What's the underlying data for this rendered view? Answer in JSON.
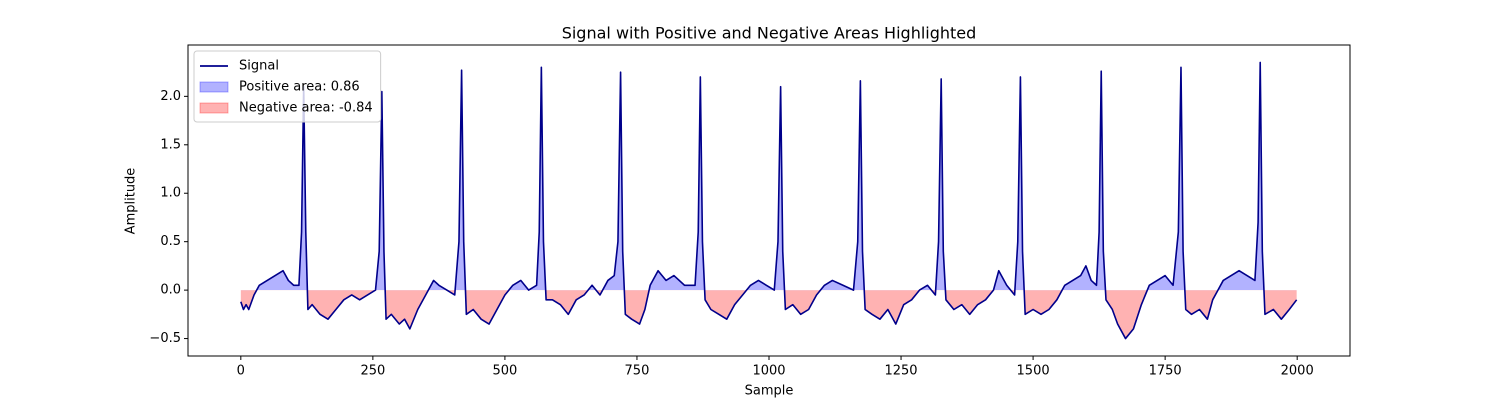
{
  "chart_data": {
    "type": "line",
    "title": "Signal with Positive and Negative Areas Highlighted",
    "x_label": "Sample",
    "y_label": "Amplitude",
    "xlim": [
      -100,
      2100
    ],
    "ylim": [
      -0.68,
      2.53
    ],
    "xticks": [
      0,
      250,
      500,
      750,
      1000,
      1250,
      1500,
      1750,
      2000
    ],
    "yticks": [
      {
        "value": -0.5,
        "label": "−0.5"
      },
      {
        "value": 0,
        "label": "0.0"
      },
      0.5,
      {
        "value": 1,
        "label": "1.0"
      },
      1.5,
      {
        "value": 2,
        "label": "2.0"
      }
    ],
    "legend": "upper left",
    "fills": [
      {
        "name": "Positive area: 0.86",
        "color": "#0000ff",
        "side": "positive"
      },
      {
        "name": "Negative area: -0.84",
        "color": "#ff0000",
        "side": "negative"
      }
    ],
    "series": [
      {
        "name": "Signal",
        "color": "#00008b",
        "x": [
          0,
          5,
          10,
          15,
          25,
          35,
          50,
          65,
          80,
          90,
          100,
          110,
          115,
          119,
          123,
          127,
          135,
          150,
          165,
          180,
          195,
          210,
          225,
          240,
          255,
          262,
          267,
          271,
          275,
          285,
          300,
          310,
          320,
          335,
          350,
          365,
          375,
          390,
          405,
          413,
          418,
          422,
          427,
          440,
          455,
          470,
          485,
          500,
          515,
          530,
          545,
          560,
          565,
          569,
          573,
          578,
          590,
          605,
          620,
          635,
          650,
          665,
          680,
          695,
          707,
          714,
          719,
          723,
          728,
          740,
          755,
          765,
          775,
          790,
          805,
          820,
          840,
          860,
          866,
          870,
          874,
          879,
          890,
          905,
          920,
          935,
          950,
          965,
          980,
          995,
          1010,
          1017,
          1022,
          1026,
          1031,
          1045,
          1060,
          1075,
          1090,
          1105,
          1120,
          1140,
          1160,
          1168,
          1173,
          1177,
          1182,
          1195,
          1210,
          1225,
          1240,
          1255,
          1270,
          1285,
          1300,
          1315,
          1321,
          1326,
          1330,
          1335,
          1350,
          1365,
          1380,
          1395,
          1410,
          1425,
          1435,
          1450,
          1465,
          1471,
          1476,
          1480,
          1485,
          1500,
          1515,
          1530,
          1545,
          1560,
          1575,
          1590,
          1600,
          1610,
          1620,
          1625,
          1629,
          1633,
          1638,
          1650,
          1660,
          1675,
          1690,
          1705,
          1720,
          1735,
          1750,
          1765,
          1775,
          1780,
          1784,
          1789,
          1800,
          1815,
          1830,
          1840,
          1850,
          1860,
          1875,
          1890,
          1905,
          1920,
          1926,
          1930,
          1934,
          1939,
          1955,
          1970,
          1985,
          1999
        ],
        "values": [
          -0.12,
          -0.2,
          -0.15,
          -0.2,
          -0.05,
          0.05,
          0.1,
          0.15,
          0.2,
          0.1,
          0.05,
          0.05,
          0.6,
          2.1,
          0.6,
          -0.2,
          -0.15,
          -0.25,
          -0.3,
          -0.2,
          -0.1,
          -0.05,
          -0.1,
          -0.05,
          0.0,
          0.4,
          2.05,
          0.4,
          -0.3,
          -0.25,
          -0.35,
          -0.3,
          -0.4,
          -0.2,
          -0.05,
          0.1,
          0.05,
          0.0,
          -0.05,
          0.5,
          2.27,
          0.5,
          -0.25,
          -0.2,
          -0.3,
          -0.35,
          -0.2,
          -0.05,
          0.05,
          0.1,
          0.0,
          0.05,
          0.6,
          2.3,
          0.5,
          -0.1,
          -0.1,
          -0.15,
          -0.25,
          -0.1,
          -0.05,
          0.05,
          -0.05,
          0.1,
          0.15,
          0.5,
          2.25,
          0.4,
          -0.25,
          -0.3,
          -0.35,
          -0.2,
          0.05,
          0.2,
          0.1,
          0.15,
          0.05,
          0.05,
          0.6,
          2.2,
          0.5,
          -0.1,
          -0.2,
          -0.25,
          -0.3,
          -0.15,
          -0.05,
          0.05,
          0.1,
          0.05,
          0.0,
          0.5,
          2.1,
          0.4,
          -0.2,
          -0.15,
          -0.25,
          -0.2,
          -0.05,
          0.05,
          0.1,
          0.05,
          0.0,
          0.5,
          2.16,
          0.4,
          -0.2,
          -0.25,
          -0.3,
          -0.2,
          -0.35,
          -0.15,
          -0.1,
          0.0,
          0.05,
          -0.05,
          0.5,
          2.18,
          0.4,
          -0.1,
          -0.2,
          -0.15,
          -0.25,
          -0.15,
          -0.1,
          0.0,
          0.2,
          0.05,
          -0.05,
          0.5,
          2.2,
          0.4,
          -0.25,
          -0.2,
          -0.25,
          -0.2,
          -0.1,
          0.05,
          0.1,
          0.15,
          0.25,
          0.1,
          0.05,
          0.6,
          2.26,
          0.4,
          -0.1,
          -0.2,
          -0.35,
          -0.5,
          -0.4,
          -0.15,
          0.05,
          0.1,
          0.15,
          0.05,
          0.6,
          2.3,
          0.4,
          -0.2,
          -0.25,
          -0.2,
          -0.3,
          -0.1,
          0.0,
          0.1,
          0.15,
          0.2,
          0.15,
          0.1,
          0.7,
          2.35,
          0.4,
          -0.25,
          -0.2,
          -0.3,
          -0.2,
          -0.1
        ]
      }
    ]
  }
}
